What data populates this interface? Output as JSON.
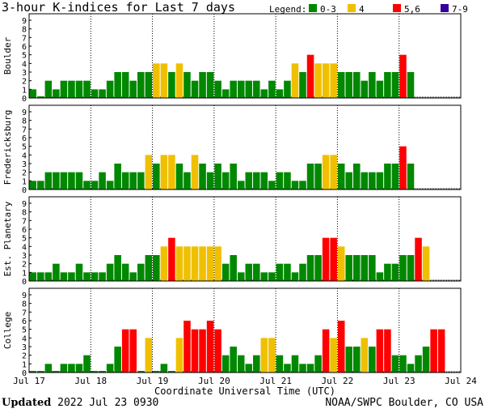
{
  "header": {
    "title": "3-hour K-indices for Last 7 days"
  },
  "legend": {
    "label": "Legend:",
    "items": [
      {
        "label": "0-3",
        "color": "#008800"
      },
      {
        "label": "4",
        "color": "#f0c000"
      },
      {
        "label": "5,6",
        "color": "#ff0000"
      },
      {
        "label": "7-9",
        "color": "#330099"
      }
    ]
  },
  "footer": {
    "updated_label": "Updated",
    "updated_value": "2022 Jul 23 0930",
    "source": "NOAA/SWPC Boulder, CO USA"
  },
  "chart_data": [
    {
      "type": "bar",
      "ylabel": "Boulder",
      "ylim": [
        0,
        9
      ],
      "yticks": [
        "0",
        "1",
        "2",
        "3",
        "4",
        "5",
        "6",
        "7",
        "8",
        "9"
      ],
      "xlabel": "Coordinate Universal Time (UTC)",
      "xticks": [
        "Jul 17",
        "Jul 18",
        "Jul 19",
        "Jul 20",
        "Jul 21",
        "Jul 22",
        "Jul 23",
        "Jul 24"
      ],
      "values": [
        1,
        0,
        2,
        1,
        2,
        2,
        2,
        2,
        1,
        1,
        2,
        3,
        3,
        2,
        3,
        3,
        4,
        4,
        3,
        4,
        3,
        2,
        3,
        3,
        2,
        1,
        2,
        2,
        2,
        2,
        1,
        2,
        1,
        2,
        4,
        3,
        5,
        4,
        4,
        4,
        3,
        3,
        3,
        2,
        3,
        2,
        3,
        3,
        5,
        3
      ]
    },
    {
      "type": "bar",
      "ylabel": "Fredericksburg",
      "ylim": [
        0,
        9
      ],
      "yticks": [
        "0",
        "1",
        "2",
        "3",
        "4",
        "5",
        "6",
        "7",
        "8",
        "9"
      ],
      "xlabel": "Coordinate Universal Time (UTC)",
      "xticks": [
        "Jul 17",
        "Jul 18",
        "Jul 19",
        "Jul 20",
        "Jul 21",
        "Jul 22",
        "Jul 23",
        "Jul 24"
      ],
      "values": [
        1,
        1,
        2,
        2,
        2,
        2,
        2,
        1,
        1,
        2,
        1,
        3,
        2,
        2,
        2,
        4,
        3,
        4,
        4,
        3,
        2,
        4,
        3,
        2,
        3,
        2,
        3,
        1,
        2,
        2,
        2,
        1,
        2,
        2,
        1,
        1,
        3,
        3,
        4,
        4,
        3,
        2,
        3,
        2,
        2,
        2,
        3,
        3,
        5,
        3
      ]
    },
    {
      "type": "bar",
      "ylabel": "Est. Planetary",
      "ylim": [
        0,
        9
      ],
      "yticks": [
        "0",
        "1",
        "2",
        "3",
        "4",
        "5",
        "6",
        "7",
        "8",
        "9"
      ],
      "xlabel": "Coordinate Universal Time (UTC)",
      "xticks": [
        "Jul 17",
        "Jul 18",
        "Jul 19",
        "Jul 20",
        "Jul 21",
        "Jul 22",
        "Jul 23",
        "Jul 24"
      ],
      "values": [
        1,
        1,
        1,
        2,
        1,
        1,
        2,
        1,
        1,
        1,
        2,
        3,
        2,
        1,
        2,
        3,
        3,
        4,
        5,
        4,
        4,
        4,
        4,
        4,
        4,
        2,
        3,
        1,
        2,
        2,
        1,
        1,
        2,
        2,
        1,
        2,
        3,
        3,
        5,
        5,
        4,
        3,
        3,
        3,
        3,
        1,
        2,
        2,
        3,
        3,
        5,
        4
      ]
    },
    {
      "type": "bar",
      "ylabel": "College",
      "ylim": [
        0,
        9
      ],
      "yticks": [
        "0",
        "1",
        "2",
        "3",
        "4",
        "5",
        "6",
        "7",
        "8",
        "9"
      ],
      "xlabel": "Coordinate Universal Time (UTC)",
      "xticks": [
        "Jul 17",
        "Jul 18",
        "Jul 19",
        "Jul 20",
        "Jul 21",
        "Jul 22",
        "Jul 23",
        "Jul 24"
      ],
      "values": [
        0,
        0,
        1,
        0,
        1,
        1,
        1,
        2,
        0,
        0,
        1,
        3,
        5,
        5,
        0,
        4,
        0,
        1,
        0,
        4,
        6,
        5,
        5,
        6,
        5,
        2,
        3,
        2,
        1,
        2,
        4,
        4,
        2,
        1,
        2,
        1,
        1,
        2,
        5,
        4,
        6,
        3,
        3,
        4,
        3,
        5,
        5,
        2,
        2,
        1,
        2,
        3,
        5,
        5
      ]
    }
  ]
}
